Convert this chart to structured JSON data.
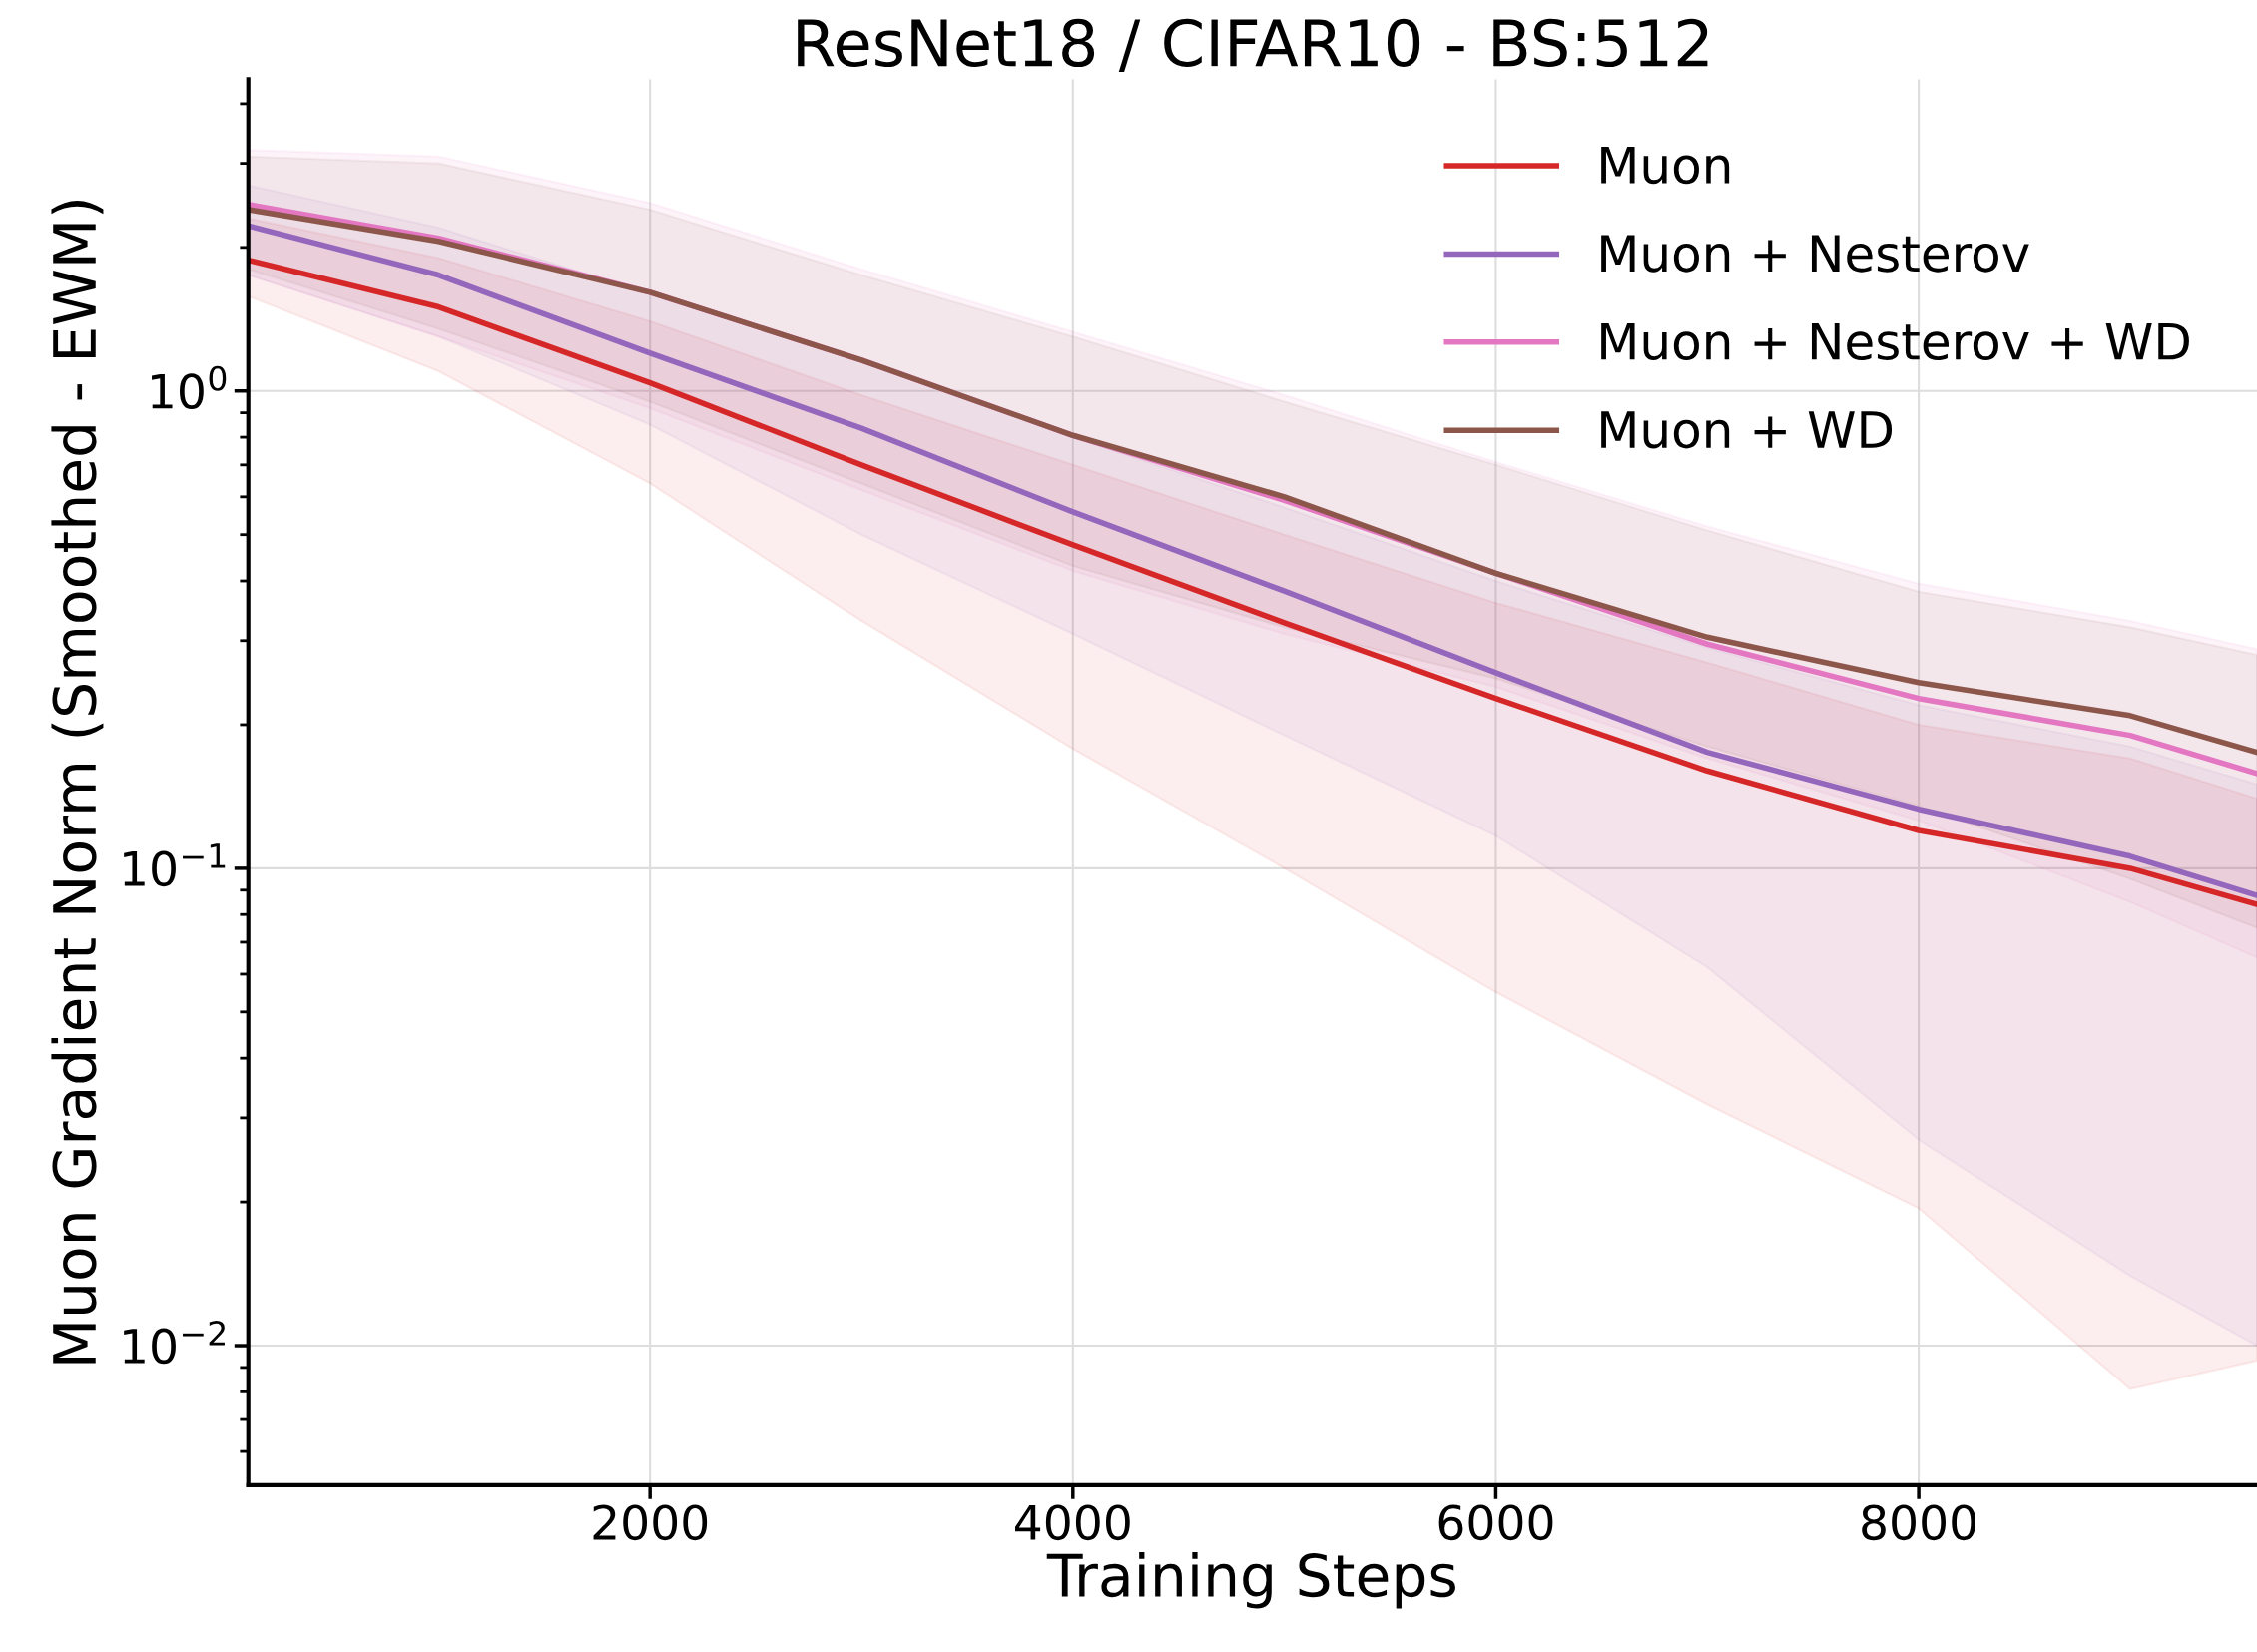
{
  "chart_data": {
    "type": "line",
    "title": "ResNet18 / CIFAR10 - BS:512",
    "xlabel": "Training Steps",
    "ylabel": "Muon Gradient Norm (Smoothed - EWM)",
    "log": "y",
    "x": [
      100,
      1000,
      2000,
      3000,
      4000,
      5000,
      6000,
      7000,
      8000,
      9000,
      9600
    ],
    "xlim": [
      100,
      9600
    ],
    "xticks": [
      2000,
      4000,
      6000,
      8000
    ],
    "ylim": [
      0.0051,
      4.5
    ],
    "yticks": [
      {
        "value": 0.01,
        "label": "10$^{−2}$"
      },
      {
        "value": 0.1,
        "label": "10$^{−1}$"
      },
      {
        "value": 1,
        "label": "10$^{0}$"
      }
    ],
    "grid": true,
    "legend": "top right",
    "line_style": "solid",
    "marker": "none",
    "series": [
      {
        "name": "Muon",
        "color": "#d62728",
        "values": [
          1.88,
          1.5,
          1.04,
          0.7,
          0.476,
          0.327,
          0.227,
          0.16,
          0.12,
          0.1,
          0.084
        ],
        "lower": [
          1.58,
          1.1,
          0.64,
          0.33,
          0.178,
          0.1,
          0.055,
          0.032,
          0.0194,
          0.0081,
          0.0093
        ],
        "upper": [
          2.3,
          1.9,
          1.4,
          0.98,
          0.7,
          0.5,
          0.36,
          0.27,
          0.2,
          0.17,
          0.14
        ]
      },
      {
        "name": "Muon + Nesterov",
        "color": "#9467bd",
        "values": [
          2.22,
          1.75,
          1.2,
          0.835,
          0.558,
          0.381,
          0.257,
          0.175,
          0.133,
          0.106,
          0.0877
        ],
        "lower": [
          1.75,
          1.3,
          0.85,
          0.5,
          0.31,
          0.19,
          0.117,
          0.062,
          0.027,
          0.014,
          0.01
        ],
        "upper": [
          2.7,
          2.2,
          1.6,
          1.15,
          0.8,
          0.57,
          0.4,
          0.29,
          0.22,
          0.18,
          0.15
        ]
      },
      {
        "name": "Muon + Nesterov + WD",
        "color": "#e377c2",
        "values": [
          2.46,
          2.09,
          1.61,
          1.16,
          0.807,
          0.59,
          0.415,
          0.295,
          0.227,
          0.19,
          0.158
        ],
        "lower": [
          1.75,
          1.3,
          0.92,
          0.62,
          0.42,
          0.31,
          0.24,
          0.17,
          0.126,
          0.085,
          0.065
        ],
        "upper": [
          3.2,
          3.1,
          2.48,
          1.8,
          1.33,
          0.98,
          0.71,
          0.52,
          0.395,
          0.33,
          0.288
        ]
      },
      {
        "name": "Muon + WD",
        "color": "#8c564b",
        "values": [
          2.4,
          2.06,
          1.61,
          1.16,
          0.807,
          0.6,
          0.415,
          0.305,
          0.245,
          0.209,
          0.175
        ],
        "lower": [
          1.8,
          1.35,
          0.95,
          0.64,
          0.43,
          0.32,
          0.25,
          0.18,
          0.135,
          0.095,
          0.075
        ],
        "upper": [
          3.1,
          3.0,
          2.4,
          1.75,
          1.3,
          0.95,
          0.7,
          0.51,
          0.38,
          0.32,
          0.28
        ]
      }
    ]
  }
}
